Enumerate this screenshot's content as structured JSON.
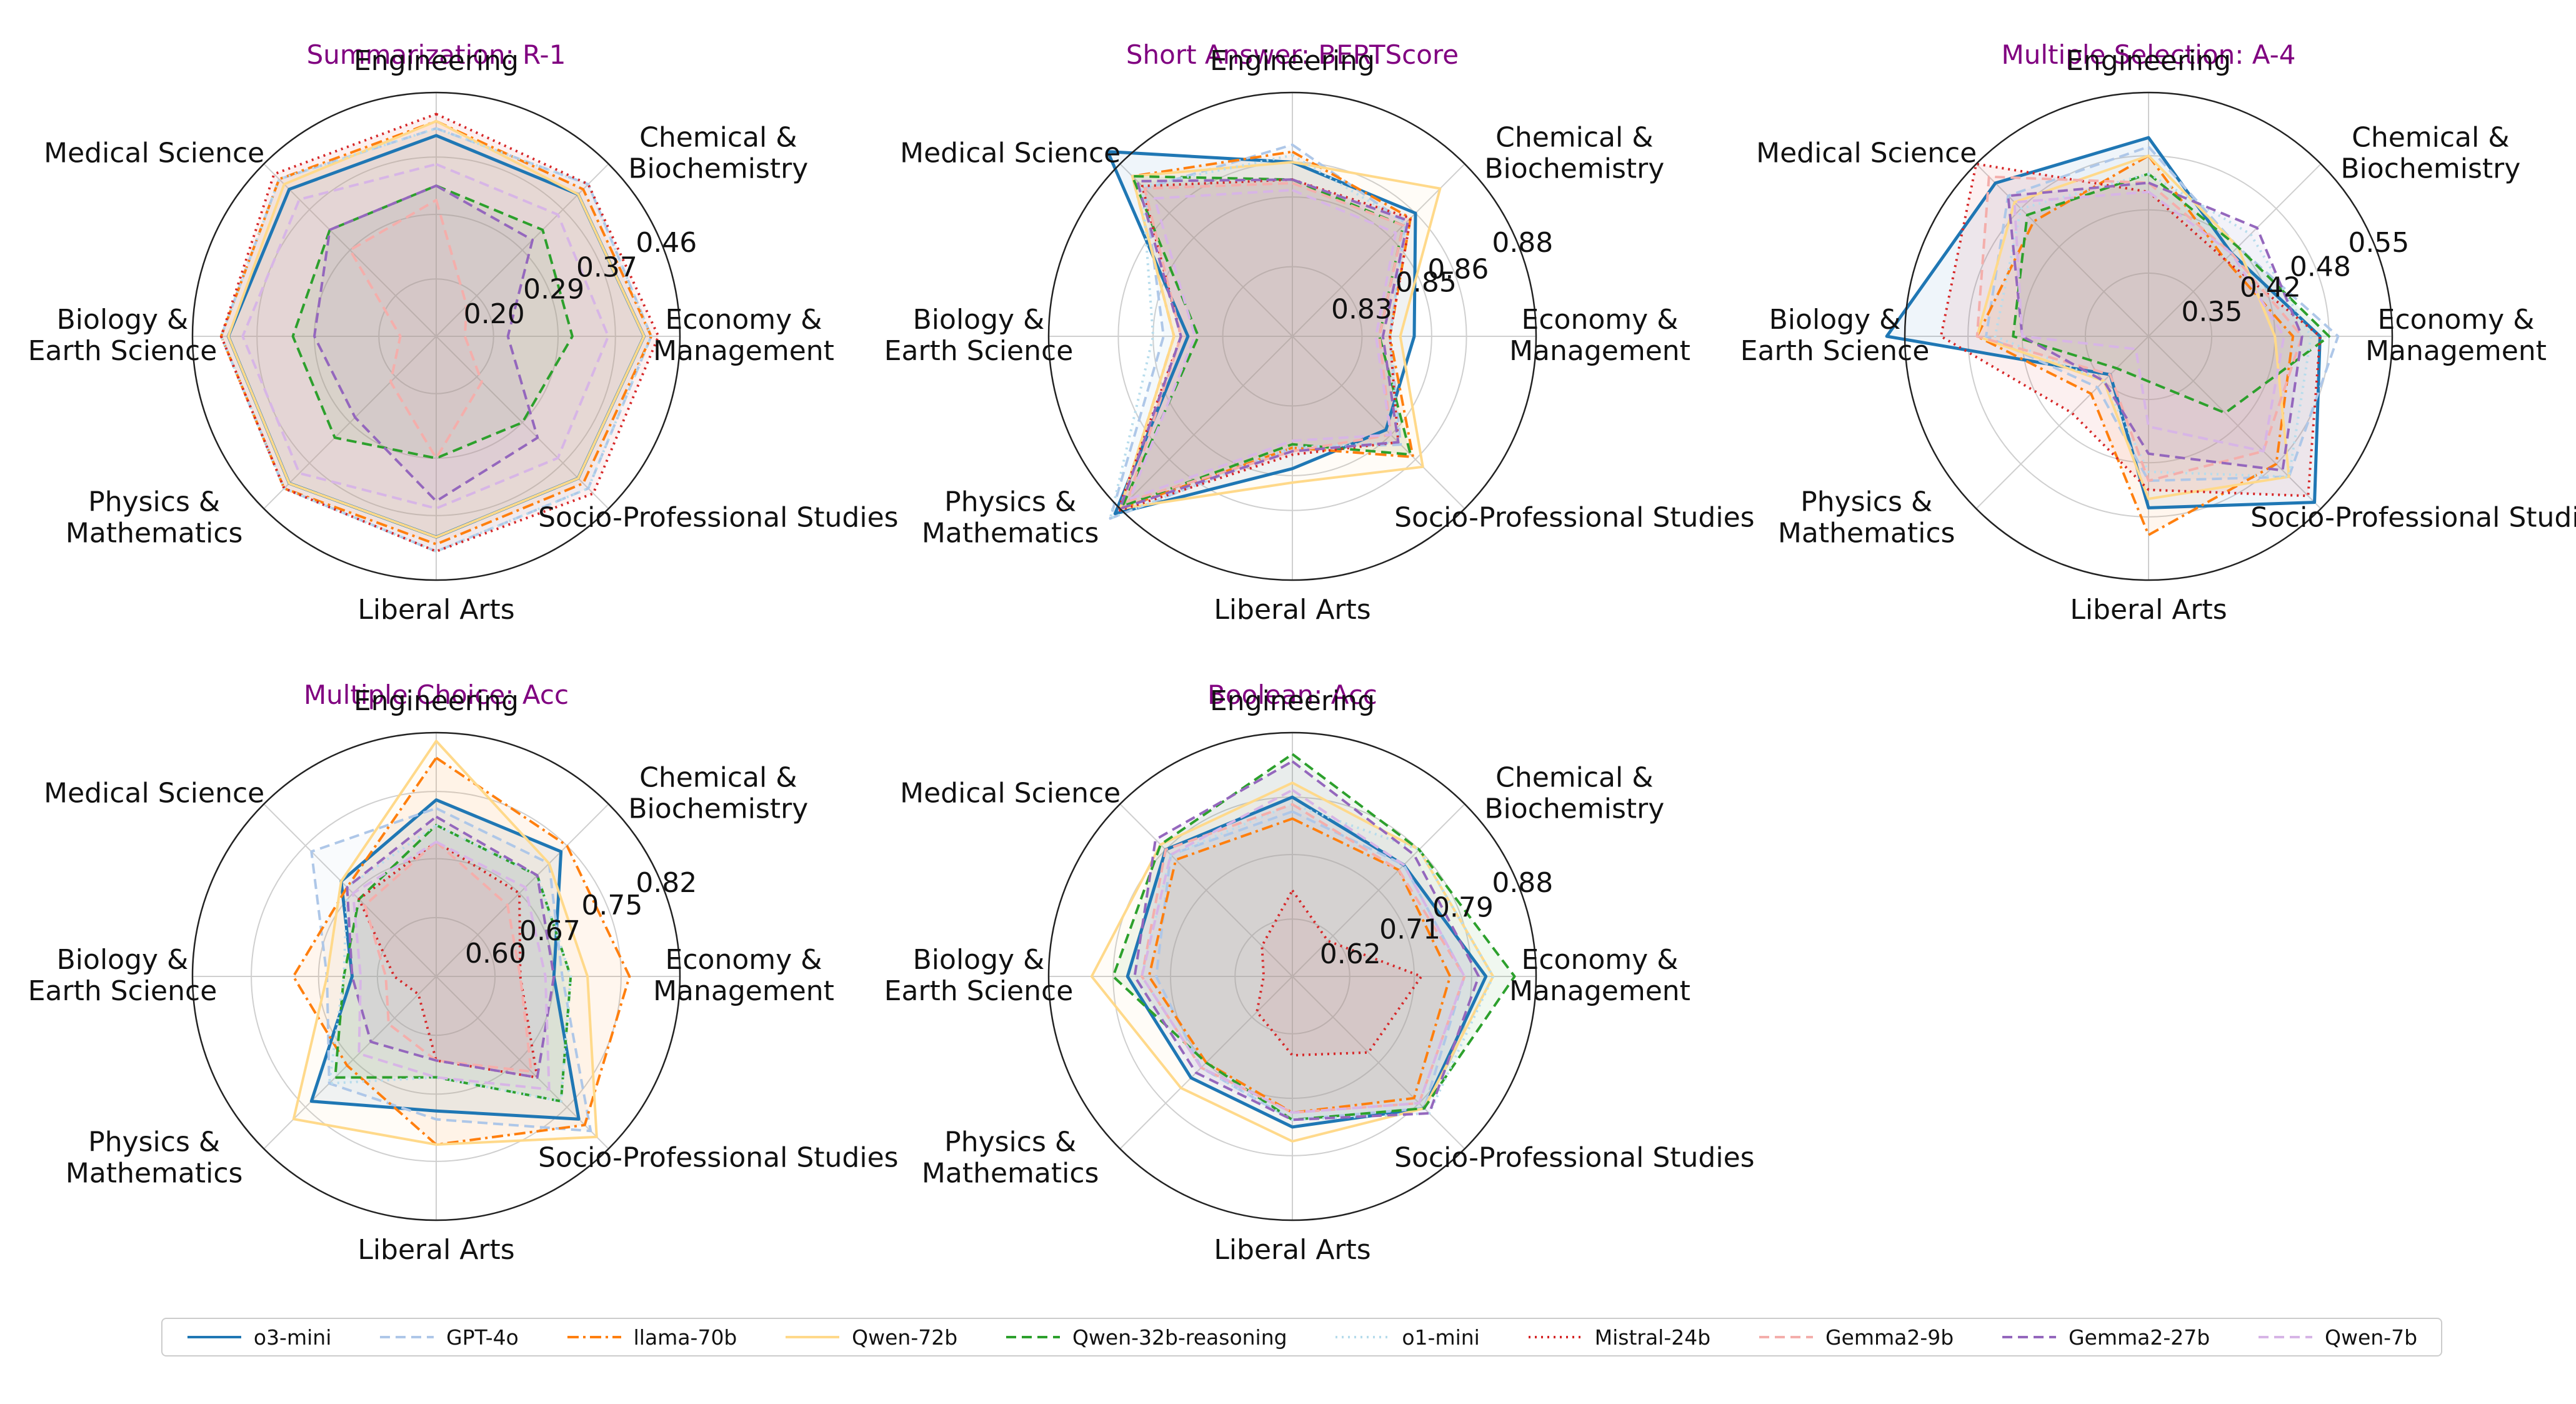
{
  "figure": {
    "background": "#ffffff",
    "title_color": "#800080"
  },
  "categories": [
    "Engineering",
    "Chemical &\nBiochemistry",
    "Economy &\nManagement",
    "Socio-Professional Studies",
    "Liberal Arts",
    "Physics &\nMathematics",
    "Biology &\nEarth Science",
    "Medical Science"
  ],
  "models": [
    {
      "name": "o3-mini",
      "color": "#1f77b4",
      "dash": "solid",
      "width": 5
    },
    {
      "name": "GPT-4o",
      "color": "#aec7e8",
      "dash": "dashed",
      "width": 4
    },
    {
      "name": "llama-70b",
      "color": "#ff7f0e",
      "dash": "dashdot",
      "width": 4
    },
    {
      "name": "Qwen-72b",
      "color": "#ffd98a",
      "dash": "solid",
      "width": 4
    },
    {
      "name": "Qwen-32b-reasoning",
      "color": "#2ca02c",
      "dash": "dashed",
      "width": 4
    },
    {
      "name": "o1-mini",
      "color": "#b7dcec",
      "dash": "dotted",
      "width": 4
    },
    {
      "name": "Mistral-24b",
      "color": "#d62728",
      "dash": "dotted",
      "width": 4
    },
    {
      "name": "Gemma2-9b",
      "color": "#f4aeab",
      "dash": "dashed",
      "width": 4
    },
    {
      "name": "Gemma2-27b",
      "color": "#9467bd",
      "dash": "dashed",
      "width": 4
    },
    {
      "name": "Qwen-7b",
      "color": "#d7b5e6",
      "dash": "dashed",
      "width": 4
    }
  ],
  "chart_data": [
    {
      "type": "radar",
      "title": "Summarization: R-1",
      "rlim": [
        0.12,
        0.46
      ],
      "rticks": [
        0.2,
        0.29,
        0.37,
        0.46
      ],
      "tick_labels": [
        "0.20",
        "0.29",
        "0.37",
        "0.46"
      ],
      "fill": true,
      "series": [
        {
          "name": "o3-mini",
          "values": [
            0.4,
            0.4,
            0.41,
            0.4,
            0.4,
            0.41,
            0.41,
            0.41
          ]
        },
        {
          "name": "GPT-4o",
          "values": [
            0.41,
            0.42,
            0.42,
            0.42,
            0.42,
            0.42,
            0.42,
            0.43
          ]
        },
        {
          "name": "llama-70b",
          "values": [
            0.42,
            0.41,
            0.42,
            0.41,
            0.41,
            0.42,
            0.42,
            0.43
          ]
        },
        {
          "name": "Qwen-72b",
          "values": [
            0.42,
            0.4,
            0.41,
            0.4,
            0.4,
            0.41,
            0.41,
            0.42
          ]
        },
        {
          "name": "Qwen-32b-reasoning",
          "values": [
            0.33,
            0.33,
            0.31,
            0.29,
            0.29,
            0.32,
            0.32,
            0.33
          ]
        },
        {
          "name": "o1-mini",
          "values": [
            0.41,
            0.42,
            0.42,
            0.42,
            0.42,
            0.42,
            0.42,
            0.43
          ]
        },
        {
          "name": "Mistral-24b",
          "values": [
            0.43,
            0.42,
            0.43,
            0.43,
            0.42,
            0.42,
            0.42,
            0.44
          ]
        },
        {
          "name": "Gemma2-9b",
          "values": [
            0.31,
            0.18,
            0.16,
            0.21,
            0.29,
            0.21,
            0.17,
            0.29
          ]
        },
        {
          "name": "Gemma2-27b",
          "values": [
            0.33,
            0.31,
            0.22,
            0.32,
            0.35,
            0.28,
            0.29,
            0.33
          ]
        },
        {
          "name": "Qwen-7b",
          "values": [
            0.36,
            0.36,
            0.36,
            0.36,
            0.36,
            0.39,
            0.39,
            0.39
          ]
        }
      ]
    },
    {
      "type": "radar",
      "title": "Short Answer: BERTScore",
      "rlim": [
        0.81,
        0.88
      ],
      "rticks": [
        0.83,
        0.85,
        0.86,
        0.88
      ],
      "tick_labels": [
        "0.83",
        "0.85",
        "0.86",
        "0.88"
      ],
      "fill": true,
      "series": [
        {
          "name": "o3-mini",
          "values": [
            0.86,
            0.86,
            0.845,
            0.848,
            0.848,
            0.882,
            0.84,
            0.885
          ]
        },
        {
          "name": "GPT-4o",
          "values": [
            0.865,
            0.856,
            0.838,
            0.854,
            0.842,
            0.884,
            0.847,
            0.87
          ]
        },
        {
          "name": "llama-70b",
          "values": [
            0.863,
            0.858,
            0.838,
            0.859,
            0.842,
            0.88,
            0.844,
            0.875
          ]
        },
        {
          "name": "Qwen-72b",
          "values": [
            0.86,
            0.87,
            0.841,
            0.863,
            0.852,
            0.88,
            0.844,
            0.875
          ]
        },
        {
          "name": "Qwen-32b-reasoning",
          "values": [
            0.855,
            0.855,
            0.835,
            0.858,
            0.841,
            0.879,
            0.837,
            0.875
          ]
        },
        {
          "name": "o1-mini",
          "values": [
            0.862,
            0.856,
            0.838,
            0.853,
            0.842,
            0.884,
            0.85,
            0.871
          ]
        },
        {
          "name": "Mistral-24b",
          "values": [
            0.855,
            0.858,
            0.838,
            0.853,
            0.844,
            0.881,
            0.842,
            0.871
          ]
        },
        {
          "name": "Gemma2-9b",
          "values": [
            0.854,
            0.855,
            0.835,
            0.85,
            0.843,
            0.877,
            0.842,
            0.87
          ]
        },
        {
          "name": "Gemma2-27b",
          "values": [
            0.855,
            0.857,
            0.836,
            0.853,
            0.843,
            0.88,
            0.842,
            0.873
          ]
        },
        {
          "name": "Qwen-7b",
          "values": [
            0.852,
            0.852,
            0.834,
            0.85,
            0.84,
            0.876,
            0.838,
            0.866
          ]
        }
      ]
    },
    {
      "type": "radar",
      "title": "Multiple Selection: A-4",
      "rlim": [
        0.28,
        0.55
      ],
      "rticks": [
        0.35,
        0.42,
        0.48,
        0.55
      ],
      "tick_labels": [
        "0.35",
        "0.42",
        "0.48",
        "0.55"
      ],
      "fill": true,
      "series": [
        {
          "name": "o3-mini",
          "values": [
            0.5,
            0.41,
            0.47,
            0.54,
            0.47,
            0.34,
            0.57,
            0.52
          ]
        },
        {
          "name": "GPT-4o",
          "values": [
            0.49,
            0.42,
            0.49,
            0.5,
            0.44,
            0.36,
            0.46,
            0.5
          ]
        },
        {
          "name": "llama-70b",
          "values": [
            0.48,
            0.4,
            0.44,
            0.48,
            0.5,
            0.37,
            0.47,
            0.46
          ]
        },
        {
          "name": "Qwen-72b",
          "values": [
            0.48,
            0.42,
            0.42,
            0.5,
            0.46,
            0.35,
            0.47,
            0.49
          ]
        },
        {
          "name": "Qwen-32b-reasoning",
          "values": [
            0.46,
            0.42,
            0.48,
            0.4,
            0.33,
            0.33,
            0.43,
            0.47
          ]
        },
        {
          "name": "o1-mini",
          "values": [
            0.46,
            0.44,
            0.46,
            0.5,
            0.43,
            0.35,
            0.45,
            0.48
          ]
        },
        {
          "name": "Mistral-24b",
          "values": [
            0.44,
            0.4,
            0.47,
            0.53,
            0.45,
            0.4,
            0.51,
            0.55
          ]
        },
        {
          "name": "Gemma2-9b",
          "values": [
            0.45,
            0.41,
            0.45,
            0.46,
            0.44,
            0.34,
            0.47,
            0.53
          ]
        },
        {
          "name": "Gemma2-27b",
          "values": [
            0.45,
            0.45,
            0.45,
            0.49,
            0.41,
            0.35,
            0.42,
            0.5
          ]
        },
        {
          "name": "Qwen-7b",
          "values": [
            0.44,
            0.41,
            0.43,
            0.46,
            0.38,
            0.3,
            0.42,
            0.49
          ]
        }
      ]
    },
    {
      "type": "radar",
      "title": "Multiple Choice: Acc",
      "rlim": [
        0.53,
        0.82
      ],
      "rticks": [
        0.6,
        0.67,
        0.75,
        0.82
      ],
      "tick_labels": [
        "0.60",
        "0.67",
        "0.75",
        "0.82"
      ],
      "fill": true,
      "series": [
        {
          "name": "o3-mini",
          "values": [
            0.74,
            0.74,
            0.67,
            0.77,
            0.69,
            0.74,
            0.63,
            0.69
          ]
        },
        {
          "name": "GPT-4o",
          "values": [
            0.73,
            0.72,
            0.68,
            0.79,
            0.7,
            0.71,
            0.66,
            0.74
          ]
        },
        {
          "name": "llama-70b",
          "values": [
            0.79,
            0.75,
            0.76,
            0.78,
            0.73,
            0.68,
            0.7,
            0.68
          ]
        },
        {
          "name": "Qwen-72b",
          "values": [
            0.81,
            0.72,
            0.71,
            0.8,
            0.73,
            0.77,
            0.66,
            0.69
          ]
        },
        {
          "name": "Qwen-32b-reasoning",
          "values": [
            0.71,
            0.7,
            0.69,
            0.74,
            0.65,
            0.7,
            0.64,
            0.66
          ]
        },
        {
          "name": "o1-mini",
          "values": [
            0.71,
            0.7,
            0.69,
            0.74,
            0.65,
            0.71,
            0.64,
            0.68
          ]
        },
        {
          "name": "Mistral-24b",
          "values": [
            0.69,
            0.67,
            0.63,
            0.7,
            0.63,
            0.56,
            0.58,
            0.66
          ]
        },
        {
          "name": "Gemma2-9b",
          "values": [
            0.69,
            0.65,
            0.63,
            0.69,
            0.63,
            0.61,
            0.59,
            0.65
          ]
        },
        {
          "name": "Gemma2-27b",
          "values": [
            0.72,
            0.7,
            0.67,
            0.7,
            0.63,
            0.64,
            0.63,
            0.68
          ]
        },
        {
          "name": "Qwen-7b",
          "values": [
            0.69,
            0.68,
            0.66,
            0.72,
            0.65,
            0.66,
            0.62,
            0.67
          ]
        }
      ]
    },
    {
      "type": "radar",
      "title": "Boolean: Acc",
      "rlim": [
        0.54,
        0.88
      ],
      "rticks": [
        0.62,
        0.71,
        0.79,
        0.88
      ],
      "tick_labels": [
        "0.62",
        "0.71",
        "0.79",
        "0.88"
      ],
      "fill": true,
      "series": [
        {
          "name": "o3-mini",
          "values": [
            0.79,
            0.76,
            0.81,
            0.8,
            0.75,
            0.74,
            0.77,
            0.79
          ]
        },
        {
          "name": "GPT-4o",
          "values": [
            0.77,
            0.76,
            0.78,
            0.8,
            0.74,
            0.72,
            0.73,
            0.78
          ]
        },
        {
          "name": "llama-70b",
          "values": [
            0.76,
            0.75,
            0.76,
            0.78,
            0.73,
            0.71,
            0.74,
            0.77
          ]
        },
        {
          "name": "Qwen-72b",
          "values": [
            0.81,
            0.79,
            0.82,
            0.8,
            0.77,
            0.76,
            0.82,
            0.8
          ]
        },
        {
          "name": "Qwen-32b-reasoning",
          "values": [
            0.85,
            0.79,
            0.85,
            0.8,
            0.74,
            0.71,
            0.79,
            0.8
          ]
        },
        {
          "name": "o1-mini",
          "values": [
            0.78,
            0.79,
            0.82,
            0.81,
            0.74,
            0.72,
            0.75,
            0.78
          ]
        },
        {
          "name": "Mistral-24b",
          "values": [
            0.66,
            0.61,
            0.72,
            0.69,
            0.65,
            0.61,
            0.58,
            0.6
          ]
        },
        {
          "name": "Gemma2-9b",
          "values": [
            0.78,
            0.75,
            0.78,
            0.79,
            0.73,
            0.72,
            0.75,
            0.79
          ]
        },
        {
          "name": "Gemma2-27b",
          "values": [
            0.84,
            0.78,
            0.8,
            0.81,
            0.74,
            0.73,
            0.76,
            0.81
          ]
        },
        {
          "name": "Qwen-7b",
          "values": [
            0.8,
            0.76,
            0.78,
            0.79,
            0.73,
            0.72,
            0.75,
            0.78
          ]
        }
      ]
    }
  ]
}
